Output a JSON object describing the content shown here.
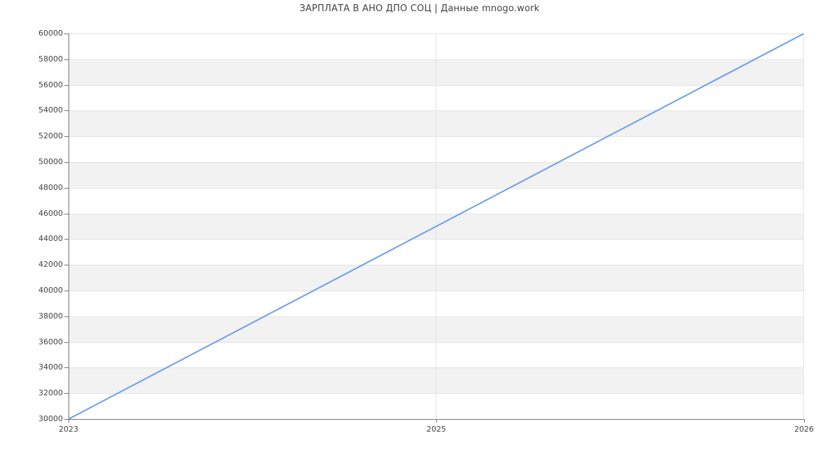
{
  "title": "ЗАРПЛАТА В АНО ДПО СОЦ | Данные mnogo.work",
  "chart_data": {
    "type": "line",
    "title": "ЗАРПЛАТА В АНО ДПО СОЦ | Данные mnogo.work",
    "categories": [
      "2023",
      "2025",
      "2026"
    ],
    "values": [
      30000,
      45000,
      60000
    ],
    "xlabel": "",
    "ylabel": "",
    "ylim": [
      30000,
      60000
    ],
    "ytick_step": 2000,
    "yticks": [
      30000,
      32000,
      34000,
      36000,
      38000,
      40000,
      42000,
      44000,
      46000,
      48000,
      50000,
      52000,
      54000,
      56000,
      58000,
      60000
    ],
    "xticks": [
      "2023",
      "2025",
      "2026"
    ],
    "grid": true,
    "legend": false,
    "alternating_row_bands": true,
    "markers": false
  },
  "colors": {
    "line": "#6d9eeb",
    "band": "#f2f2f2",
    "gridline": "#e4e4e4",
    "axis": "#757575",
    "tick": "#757575",
    "text": "#424242",
    "background": "#ffffff"
  }
}
